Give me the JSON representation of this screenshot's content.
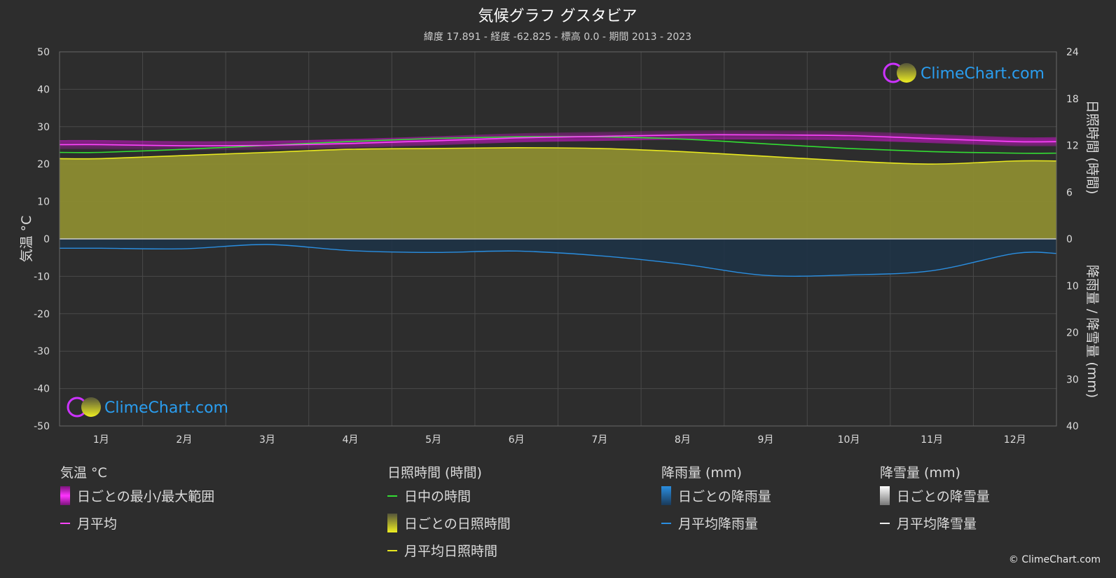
{
  "chart_data": {
    "type": "area",
    "title": "気候グラフ グスタビア",
    "subtitle": "緯度 17.891 - 経度 -62.825 - 標高 0.0 - 期間 2013 - 2023",
    "categories": [
      "1月",
      "2月",
      "3月",
      "4月",
      "5月",
      "6月",
      "7月",
      "8月",
      "9月",
      "10月",
      "11月",
      "12月"
    ],
    "y_left": {
      "label": "気温 °C",
      "lim": [
        -50,
        50
      ],
      "ticks": [
        50,
        40,
        30,
        20,
        10,
        0,
        -10,
        -20,
        -30,
        -40,
        -50
      ]
    },
    "y_right_top": {
      "label": "日照時間 (時間)",
      "lim": [
        0,
        24
      ],
      "ticks": [
        24,
        18,
        12,
        6,
        0
      ]
    },
    "y_right_bottom": {
      "label": "降雨量 / 降雪量 (mm)",
      "lim": [
        0,
        40
      ],
      "ticks": [
        10,
        20,
        30,
        40
      ]
    },
    "series": [
      {
        "name": "月平均",
        "unit": "°C",
        "values": [
          25.2,
          24.9,
          25.0,
          25.5,
          26.2,
          27.0,
          27.4,
          27.8,
          27.8,
          27.6,
          26.8,
          26.0
        ],
        "color": "#ff44ff"
      },
      {
        "name": "日中の時間",
        "unit": "時間",
        "values": [
          11.1,
          11.5,
          12.0,
          12.5,
          12.9,
          13.1,
          13.1,
          12.8,
          12.2,
          11.6,
          11.2,
          11.0
        ],
        "color": "#33dd33"
      },
      {
        "name": "月平均日照時間",
        "unit": "時間",
        "values": [
          10.3,
          10.7,
          11.1,
          11.5,
          11.6,
          11.7,
          11.6,
          11.2,
          10.6,
          10.0,
          9.6,
          10.0
        ],
        "color": "#e8e820"
      },
      {
        "name": "月平均降雨量",
        "unit": "mm",
        "values": [
          2.0,
          2.1,
          1.2,
          2.5,
          2.9,
          2.6,
          3.6,
          5.4,
          7.8,
          7.7,
          6.8,
          3.1
        ],
        "color": "#2a8ee0"
      }
    ],
    "legend": {
      "groups": [
        {
          "title": "気温 °C",
          "items": [
            {
              "label": "日ごとの最小/最大範囲",
              "kind": "box",
              "color": "#e010e0"
            },
            {
              "label": "月平均",
              "kind": "line",
              "color": "#ff44ff"
            }
          ]
        },
        {
          "title": "日照時間 (時間)",
          "items": [
            {
              "label": "日中の時間",
              "kind": "line",
              "color": "#33dd33"
            },
            {
              "label": "日ごとの日照時間",
              "kind": "box",
              "color": "#c8c832"
            },
            {
              "label": "月平均日照時間",
              "kind": "line",
              "color": "#e8e820"
            }
          ]
        },
        {
          "title": "降雨量 (mm)",
          "items": [
            {
              "label": "日ごとの降雨量",
              "kind": "box",
              "color": "#2a8ee0"
            },
            {
              "label": "月平均降雨量",
              "kind": "line",
              "color": "#2a8ee0"
            }
          ]
        },
        {
          "title": "降雪量 (mm)",
          "items": [
            {
              "label": "日ごとの降雪量",
              "kind": "box",
              "color": "#dddddd"
            },
            {
              "label": "月平均降雪量",
              "kind": "line",
              "color": "#eeeeee"
            }
          ]
        }
      ]
    },
    "watermark": "ClimeChart.com",
    "grid": true
  },
  "copyright": "© ClimeChart.com"
}
